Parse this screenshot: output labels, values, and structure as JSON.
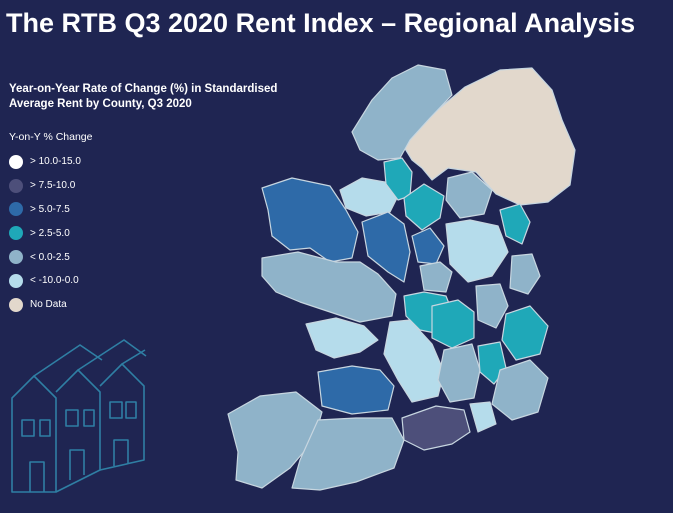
{
  "title": "The RTB Q3 2020 Rent Index – Regional Analysis",
  "subtitle": "Year-on-Year Rate of Change (%) in Standardised Average Rent by County, Q3 2020",
  "legend": {
    "title": "Y-on-Y % Change",
    "items": [
      {
        "label": "> 10.0-15.0",
        "color": "#ffffff"
      },
      {
        "label": "> 7.5-10.0",
        "color": "#4d4f7a"
      },
      {
        "label": "> 5.0-7.5",
        "color": "#2e6aa8"
      },
      {
        "label": "> 2.5-5.0",
        "color": "#1fa8b8"
      },
      {
        "label": "< 0.0-2.5",
        "color": "#8fb3c9"
      },
      {
        "label": "< -10.0-0.0",
        "color": "#b5dceb"
      },
      {
        "label": "No Data",
        "color": "#e2d8cc"
      }
    ]
  },
  "colors": {
    "background": "#1f2552",
    "border": "#c7d6e0",
    "illustration": "#2f7fa4"
  }
}
